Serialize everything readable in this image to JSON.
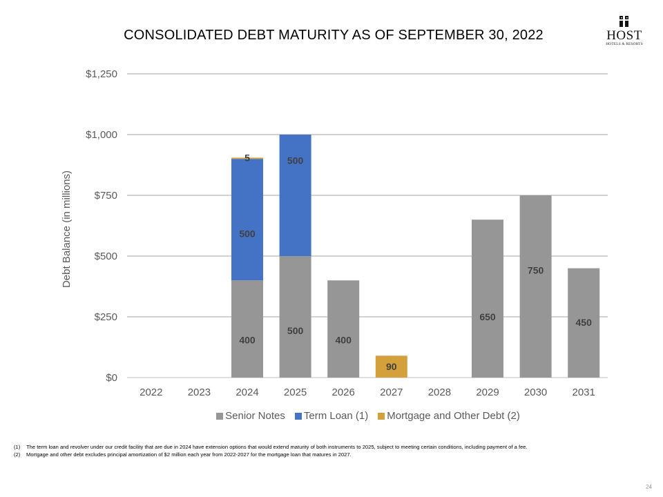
{
  "title": "CONSOLIDATED DEBT MATURITY AS OF SEPTEMBER 30, 2022",
  "logo": {
    "name": "HOST",
    "subtitle": "HOTELS & RESORTS"
  },
  "chart_data": {
    "type": "bar",
    "stacked": true,
    "title": "CONSOLIDATED DEBT MATURITY AS OF SEPTEMBER 30, 2022",
    "xlabel": "",
    "ylabel": "Debt Balance (in millions)",
    "ylim": [
      0,
      1250
    ],
    "yticks": [
      0,
      250,
      500,
      750,
      1000,
      1250
    ],
    "ytick_labels": [
      "$0",
      "$250",
      "$500",
      "$750",
      "$1,000",
      "$1,250"
    ],
    "grid": true,
    "legend_position": "bottom",
    "categories": [
      "2022",
      "2023",
      "2024",
      "2025",
      "2026",
      "2027",
      "2028",
      "2029",
      "2030",
      "2031"
    ],
    "series": [
      {
        "name": "Senior Notes",
        "color": "#969696",
        "values": [
          0,
          0,
          400,
          500,
          400,
          0,
          0,
          650,
          750,
          450
        ]
      },
      {
        "name": "Term Loan (1)",
        "color": "#4472c4",
        "values": [
          0,
          0,
          500,
          500,
          0,
          0,
          0,
          0,
          0,
          0
        ]
      },
      {
        "name": "Mortgage and Other Debt (2)",
        "color": "#d4a03c",
        "values": [
          0,
          0,
          5,
          0,
          0,
          90,
          0,
          0,
          0,
          0
        ]
      }
    ]
  },
  "footnotes": [
    {
      "num": "(1)",
      "text": "The term loan and revolver under our credit facility that are due in 2024 have extension options that would extend maturity of both instruments to 2025, subject to meeting certain conditions, including payment of a fee."
    },
    {
      "num": "(2)",
      "text": "Mortgage and other debt excludes principal amortization of $2 million each year from 2022-2027 for the mortgage loan that matures in 2027."
    }
  ],
  "page_number": "24"
}
